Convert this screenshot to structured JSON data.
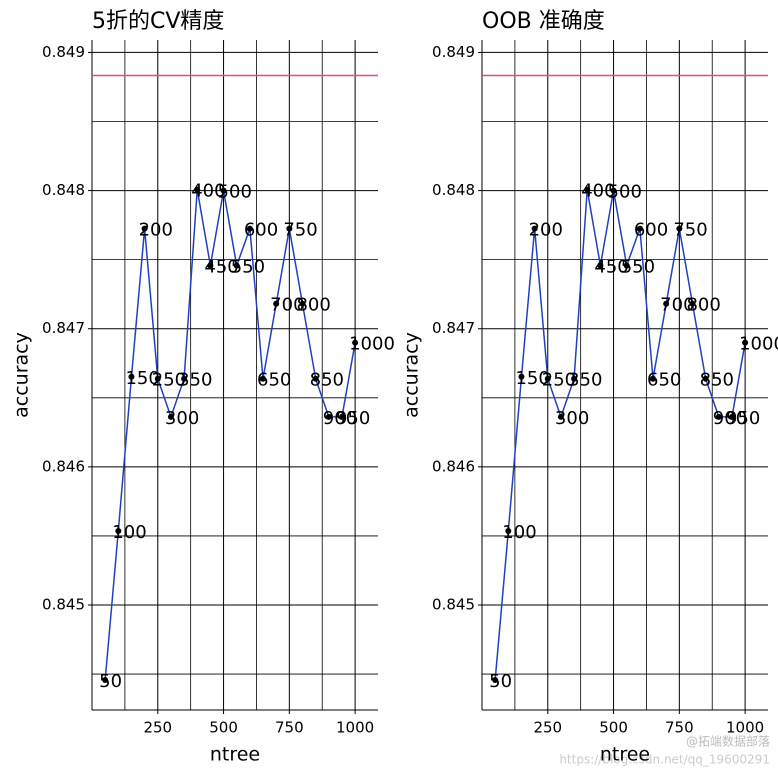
{
  "chart_data": [
    {
      "type": "line",
      "title": "5折的CV精度",
      "xlabel": "ntree",
      "ylabel": "accuracy",
      "x": [
        50,
        100,
        150,
        200,
        250,
        300,
        350,
        400,
        450,
        500,
        550,
        600,
        650,
        700,
        750,
        800,
        850,
        900,
        950,
        1000
      ],
      "series": [
        {
          "color": "#2140c0",
          "values": [
            0.844457,
            0.845536,
            0.846652,
            0.847725,
            0.846638,
            0.846362,
            0.846638,
            0.848007,
            0.847457,
            0.848,
            0.847457,
            0.847725,
            0.846638,
            0.847181,
            0.847725,
            0.847181,
            0.846638,
            0.846362,
            0.846362,
            0.846899
          ]
        }
      ],
      "hline": {
        "value": 0.848833,
        "color": "#e0506a"
      },
      "xlim": [
        0,
        1087
      ],
      "ylim": [
        0.84424,
        0.84909
      ],
      "xticks": [
        250,
        500,
        750,
        1000
      ],
      "xminor": [
        125,
        375,
        625,
        875
      ],
      "yticks": [
        0.845,
        0.846,
        0.847,
        0.848,
        0.849
      ],
      "yminor": [
        0.8445,
        0.8455,
        0.8465,
        0.8475,
        0.8485
      ],
      "grid": true
    },
    {
      "type": "line",
      "title": "OOB 准确度",
      "xlabel": "ntree",
      "ylabel": "accuracy",
      "x": [
        50,
        100,
        150,
        200,
        250,
        300,
        350,
        400,
        450,
        500,
        550,
        600,
        650,
        700,
        750,
        800,
        850,
        900,
        950,
        1000
      ],
      "series": [
        {
          "color": "#2140c0",
          "values": [
            0.844457,
            0.845536,
            0.846652,
            0.847725,
            0.846638,
            0.846362,
            0.846638,
            0.848007,
            0.847457,
            0.848,
            0.847457,
            0.847725,
            0.846638,
            0.847181,
            0.847725,
            0.847181,
            0.846638,
            0.846362,
            0.846362,
            0.846899
          ]
        }
      ],
      "hline": {
        "value": 0.848833,
        "color": "#e0506a"
      },
      "xlim": [
        0,
        1087
      ],
      "ylim": [
        0.84424,
        0.84909
      ],
      "xticks": [
        250,
        500,
        750,
        1000
      ],
      "xminor": [
        125,
        375,
        625,
        875
      ],
      "yticks": [
        0.845,
        0.846,
        0.847,
        0.848,
        0.849
      ],
      "yminor": [
        0.8445,
        0.8455,
        0.8465,
        0.8475,
        0.8485
      ],
      "grid": true
    }
  ],
  "watermark": {
    "url": "https://blog.csdn.net/qq_19600291",
    "brand": "@拓端数据部落"
  }
}
